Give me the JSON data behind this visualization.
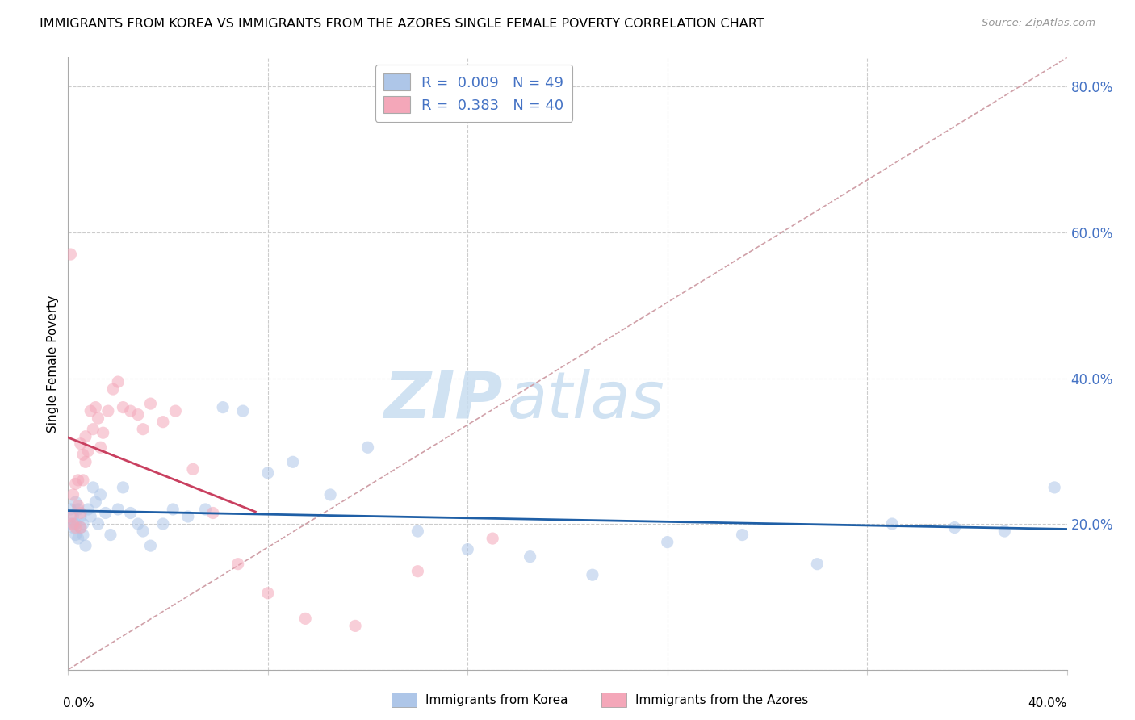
{
  "title": "IMMIGRANTS FROM KOREA VS IMMIGRANTS FROM THE AZORES SINGLE FEMALE POVERTY CORRELATION CHART",
  "source": "Source: ZipAtlas.com",
  "ylabel": "Single Female Poverty",
  "legend1_color": "#aec6e8",
  "legend2_color": "#f4a7b9",
  "line1_color": "#1f5fa6",
  "line2_color": "#c94060",
  "diag_color": "#d0a0a8",
  "watermark_zip": "ZIP",
  "watermark_atlas": "atlas",
  "xlim": [
    0.0,
    0.4
  ],
  "ylim": [
    0.0,
    0.84
  ],
  "yticks": [
    0.0,
    0.2,
    0.4,
    0.6,
    0.8
  ],
  "yticklabels": [
    "",
    "20.0%",
    "40.0%",
    "60.0%",
    "80.0%"
  ],
  "korea_r": 0.009,
  "korea_n": 49,
  "azores_r": 0.383,
  "azores_n": 40,
  "dot_size": 120,
  "alpha": 0.55,
  "korea_x": [
    0.001,
    0.001,
    0.002,
    0.002,
    0.003,
    0.003,
    0.003,
    0.004,
    0.004,
    0.005,
    0.005,
    0.006,
    0.006,
    0.007,
    0.008,
    0.009,
    0.01,
    0.011,
    0.012,
    0.013,
    0.015,
    0.017,
    0.02,
    0.022,
    0.025,
    0.028,
    0.03,
    0.033,
    0.038,
    0.042,
    0.048,
    0.055,
    0.062,
    0.07,
    0.08,
    0.09,
    0.105,
    0.12,
    0.14,
    0.16,
    0.185,
    0.21,
    0.24,
    0.27,
    0.3,
    0.33,
    0.355,
    0.375,
    0.395
  ],
  "korea_y": [
    0.22,
    0.2,
    0.21,
    0.195,
    0.23,
    0.2,
    0.185,
    0.22,
    0.18,
    0.21,
    0.195,
    0.2,
    0.185,
    0.17,
    0.22,
    0.21,
    0.25,
    0.23,
    0.2,
    0.24,
    0.215,
    0.185,
    0.22,
    0.25,
    0.215,
    0.2,
    0.19,
    0.17,
    0.2,
    0.22,
    0.21,
    0.22,
    0.36,
    0.355,
    0.27,
    0.285,
    0.24,
    0.305,
    0.19,
    0.165,
    0.155,
    0.13,
    0.175,
    0.185,
    0.145,
    0.2,
    0.195,
    0.19,
    0.25
  ],
  "azores_x": [
    0.001,
    0.001,
    0.002,
    0.002,
    0.003,
    0.003,
    0.004,
    0.004,
    0.005,
    0.005,
    0.005,
    0.006,
    0.006,
    0.007,
    0.007,
    0.008,
    0.009,
    0.01,
    0.011,
    0.012,
    0.013,
    0.014,
    0.016,
    0.018,
    0.02,
    0.022,
    0.025,
    0.028,
    0.03,
    0.033,
    0.038,
    0.043,
    0.05,
    0.058,
    0.068,
    0.08,
    0.095,
    0.115,
    0.14,
    0.17
  ],
  "azores_y": [
    0.21,
    0.57,
    0.2,
    0.24,
    0.195,
    0.255,
    0.26,
    0.225,
    0.215,
    0.195,
    0.31,
    0.26,
    0.295,
    0.285,
    0.32,
    0.3,
    0.355,
    0.33,
    0.36,
    0.345,
    0.305,
    0.325,
    0.355,
    0.385,
    0.395,
    0.36,
    0.355,
    0.35,
    0.33,
    0.365,
    0.34,
    0.355,
    0.275,
    0.215,
    0.145,
    0.105,
    0.07,
    0.06,
    0.135,
    0.18
  ]
}
